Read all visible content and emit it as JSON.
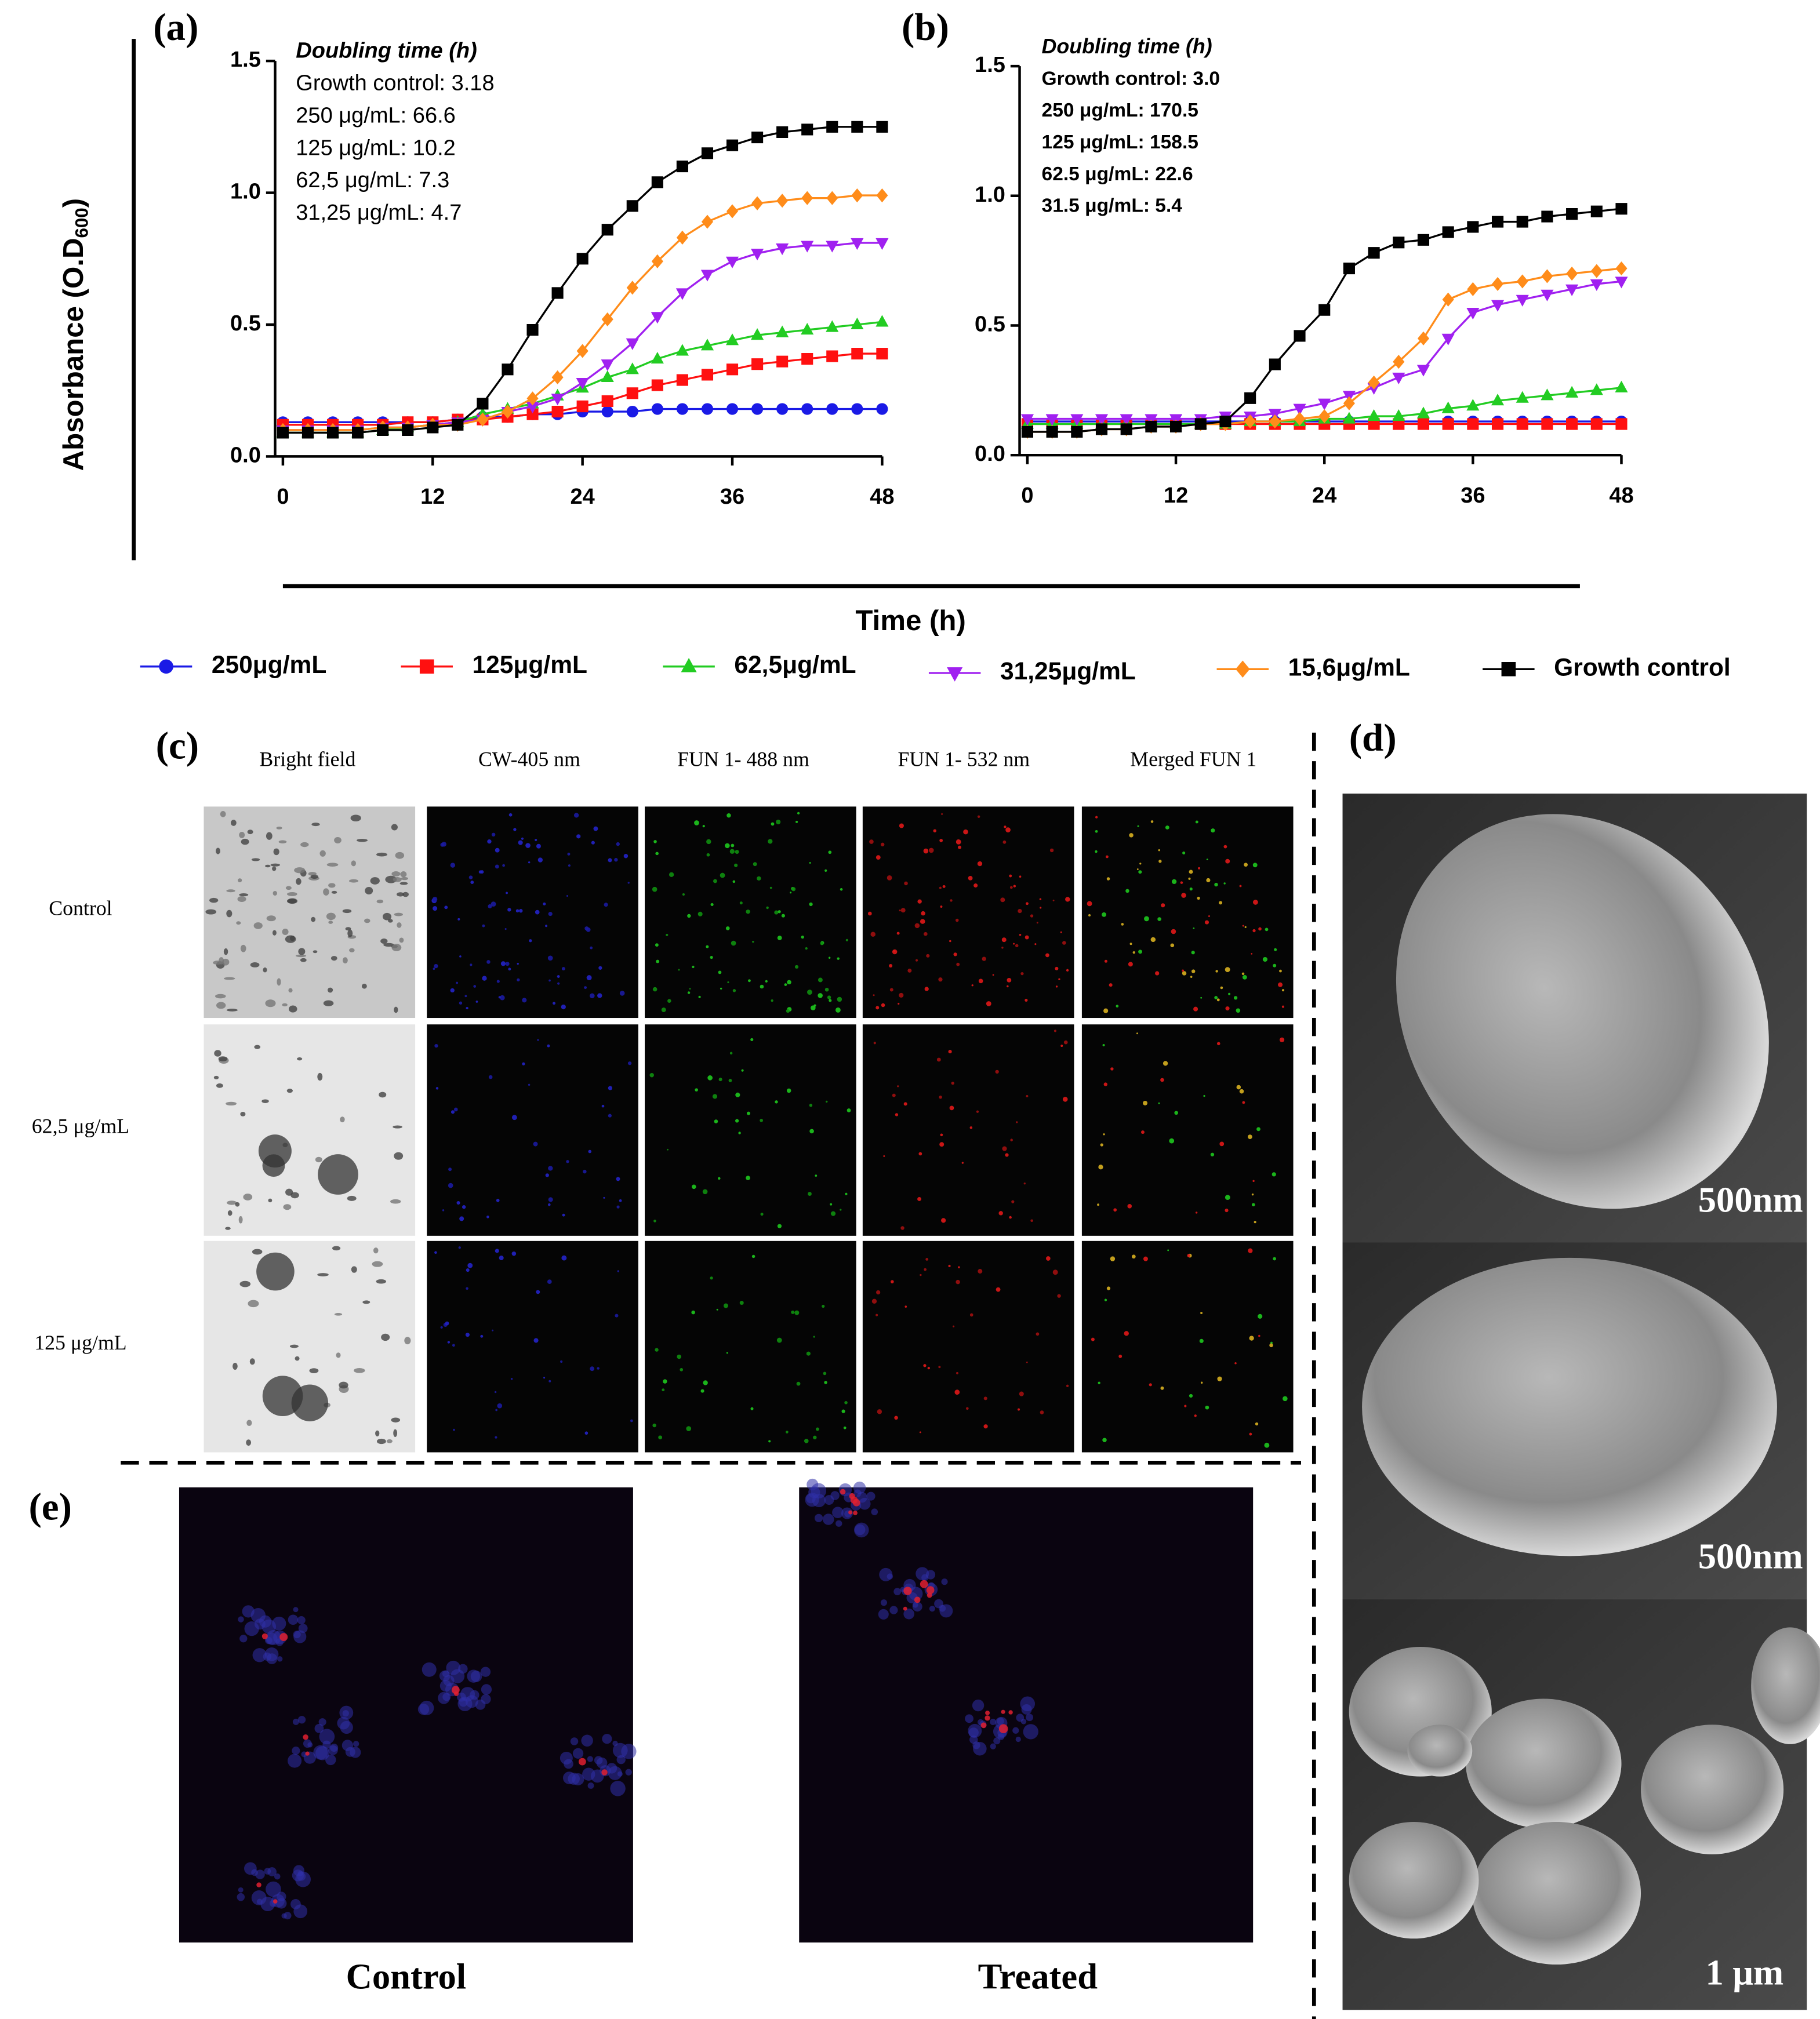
{
  "panels": {
    "a": "(a)",
    "b": "(b)",
    "c": "(c)",
    "d": "(d)",
    "e": "(e)"
  },
  "shared_axes": {
    "y_label": "Absorbance (O.D",
    "y_label_sub": "600",
    "y_label_end": ")",
    "x_label": "Time (h)"
  },
  "chart_data": [
    {
      "type": "line",
      "annotation_title": "Doubling time (h)",
      "annotations": [
        "Growth control: 3.18",
        "250 μg/mL: 66.6",
        "125 μg/mL: 10.2",
        "62,5 μg/mL: 7.3",
        "31,25 μg/mL: 4.7"
      ],
      "x": [
        0,
        2,
        4,
        6,
        8,
        10,
        12,
        14,
        16,
        18,
        20,
        22,
        24,
        26,
        28,
        30,
        32,
        34,
        36,
        38,
        40,
        42,
        44,
        46,
        48
      ],
      "xlim": [
        0,
        48
      ],
      "ylim": [
        0,
        1.5
      ],
      "xticks": [
        0,
        12,
        24,
        36,
        48
      ],
      "yticks": [
        {
          "value": 0,
          "label": "0.0"
        },
        0.5,
        {
          "value": 1,
          "label": "1.0"
        },
        1.5
      ],
      "series": [
        {
          "name": "250μg/mL",
          "color": "#1a1ae6",
          "values": [
            0.13,
            0.13,
            0.13,
            0.13,
            0.13,
            0.13,
            0.13,
            0.14,
            0.15,
            0.15,
            0.16,
            0.16,
            0.17,
            0.17,
            0.17,
            0.18,
            0.18,
            0.18,
            0.18,
            0.18,
            0.18,
            0.18,
            0.18,
            0.18,
            0.18
          ]
        },
        {
          "name": "125μg/mL",
          "color": "#ff1010",
          "values": [
            0.12,
            0.12,
            0.12,
            0.12,
            0.12,
            0.13,
            0.13,
            0.14,
            0.14,
            0.15,
            0.16,
            0.17,
            0.19,
            0.21,
            0.24,
            0.27,
            0.29,
            0.31,
            0.33,
            0.35,
            0.36,
            0.37,
            0.38,
            0.39,
            0.39
          ]
        },
        {
          "name": "62,5μg/mL",
          "color": "#22cc22",
          "values": [
            0.09,
            0.09,
            0.09,
            0.09,
            0.1,
            0.11,
            0.12,
            0.13,
            0.16,
            0.18,
            0.2,
            0.23,
            0.26,
            0.3,
            0.33,
            0.37,
            0.4,
            0.42,
            0.44,
            0.46,
            0.47,
            0.48,
            0.49,
            0.5,
            0.51
          ]
        },
        {
          "name": "31,25μg/mL",
          "color": "#a020f0",
          "values": [
            0.1,
            0.1,
            0.1,
            0.1,
            0.11,
            0.11,
            0.12,
            0.13,
            0.14,
            0.17,
            0.19,
            0.22,
            0.28,
            0.35,
            0.43,
            0.53,
            0.62,
            0.69,
            0.74,
            0.77,
            0.79,
            0.8,
            0.8,
            0.81,
            0.81
          ]
        },
        {
          "name": "15,6μg/mL",
          "color": "#ff8c1a",
          "values": [
            0.1,
            0.1,
            0.1,
            0.1,
            0.11,
            0.11,
            0.12,
            0.12,
            0.14,
            0.17,
            0.22,
            0.3,
            0.4,
            0.52,
            0.64,
            0.74,
            0.83,
            0.89,
            0.93,
            0.96,
            0.97,
            0.98,
            0.98,
            0.99,
            0.99
          ]
        },
        {
          "name": "Growth control",
          "color": "#000000",
          "values": [
            0.09,
            0.09,
            0.09,
            0.09,
            0.1,
            0.1,
            0.11,
            0.12,
            0.2,
            0.33,
            0.48,
            0.62,
            0.75,
            0.86,
            0.95,
            1.04,
            1.1,
            1.15,
            1.18,
            1.21,
            1.23,
            1.24,
            1.25,
            1.25,
            1.25
          ]
        }
      ]
    },
    {
      "type": "line",
      "annotation_title": "Doubling time (h)",
      "annotations": [
        "Growth control: 3.0",
        "250 μg/mL: 170.5",
        "125 μg/mL: 158.5",
        "62.5 μg/mL: 22.6",
        "31.5 μg/mL: 5.4"
      ],
      "x": [
        0,
        2,
        4,
        6,
        8,
        10,
        12,
        14,
        16,
        18,
        20,
        22,
        24,
        26,
        28,
        30,
        32,
        34,
        36,
        38,
        40,
        42,
        44,
        46,
        48
      ],
      "xlim": [
        0,
        48
      ],
      "ylim": [
        0,
        1.5
      ],
      "xticks": [
        0,
        12,
        24,
        36,
        48
      ],
      "yticks": [
        {
          "value": 0,
          "label": "0.0"
        },
        0.5,
        {
          "value": 1,
          "label": "1.0"
        },
        1.5
      ],
      "series": [
        {
          "color": "#1a1ae6",
          "values": [
            0.13,
            0.13,
            0.13,
            0.13,
            0.13,
            0.13,
            0.13,
            0.13,
            0.13,
            0.13,
            0.13,
            0.13,
            0.13,
            0.13,
            0.13,
            0.13,
            0.13,
            0.13,
            0.13,
            0.13,
            0.13,
            0.13,
            0.13,
            0.13,
            0.13
          ]
        },
        {
          "color": "#ff1010",
          "values": [
            0.12,
            0.12,
            0.12,
            0.12,
            0.12,
            0.12,
            0.12,
            0.12,
            0.12,
            0.12,
            0.12,
            0.12,
            0.12,
            0.12,
            0.12,
            0.12,
            0.12,
            0.12,
            0.12,
            0.12,
            0.12,
            0.12,
            0.12,
            0.12,
            0.12
          ]
        },
        {
          "color": "#22cc22",
          "values": [
            0.12,
            0.12,
            0.12,
            0.12,
            0.12,
            0.12,
            0.12,
            0.12,
            0.12,
            0.13,
            0.13,
            0.13,
            0.14,
            0.14,
            0.15,
            0.15,
            0.16,
            0.18,
            0.19,
            0.21,
            0.22,
            0.23,
            0.24,
            0.25,
            0.26
          ]
        },
        {
          "color": "#a020f0",
          "values": [
            0.14,
            0.14,
            0.14,
            0.14,
            0.14,
            0.14,
            0.14,
            0.14,
            0.15,
            0.15,
            0.16,
            0.18,
            0.2,
            0.23,
            0.26,
            0.3,
            0.33,
            0.45,
            0.55,
            0.58,
            0.6,
            0.62,
            0.64,
            0.66,
            0.67
          ]
        },
        {
          "color": "#ff8c1a",
          "values": [
            0.09,
            0.09,
            0.09,
            0.1,
            0.1,
            0.11,
            0.11,
            0.12,
            0.12,
            0.13,
            0.13,
            0.14,
            0.15,
            0.2,
            0.28,
            0.36,
            0.45,
            0.6,
            0.64,
            0.66,
            0.67,
            0.69,
            0.7,
            0.71,
            0.72
          ]
        },
        {
          "color": "#000000",
          "values": [
            0.09,
            0.09,
            0.09,
            0.1,
            0.1,
            0.11,
            0.11,
            0.12,
            0.13,
            0.22,
            0.35,
            0.46,
            0.56,
            0.72,
            0.78,
            0.82,
            0.83,
            0.86,
            0.88,
            0.9,
            0.9,
            0.92,
            0.93,
            0.94,
            0.95
          ]
        }
      ]
    }
  ],
  "microscopy": {
    "columns": [
      "Bright field",
      "CW-405 nm",
      "FUN 1- 488 nm",
      "FUN 1- 532 nm",
      "Merged FUN 1"
    ],
    "rows": [
      "Control",
      "62,5 μg/mL",
      "125 μg/mL"
    ]
  },
  "sem": {
    "scale_bars": [
      "500nm",
      "500nm",
      "1 μm"
    ]
  },
  "staining": {
    "labels": [
      "Control",
      "Treated"
    ]
  }
}
